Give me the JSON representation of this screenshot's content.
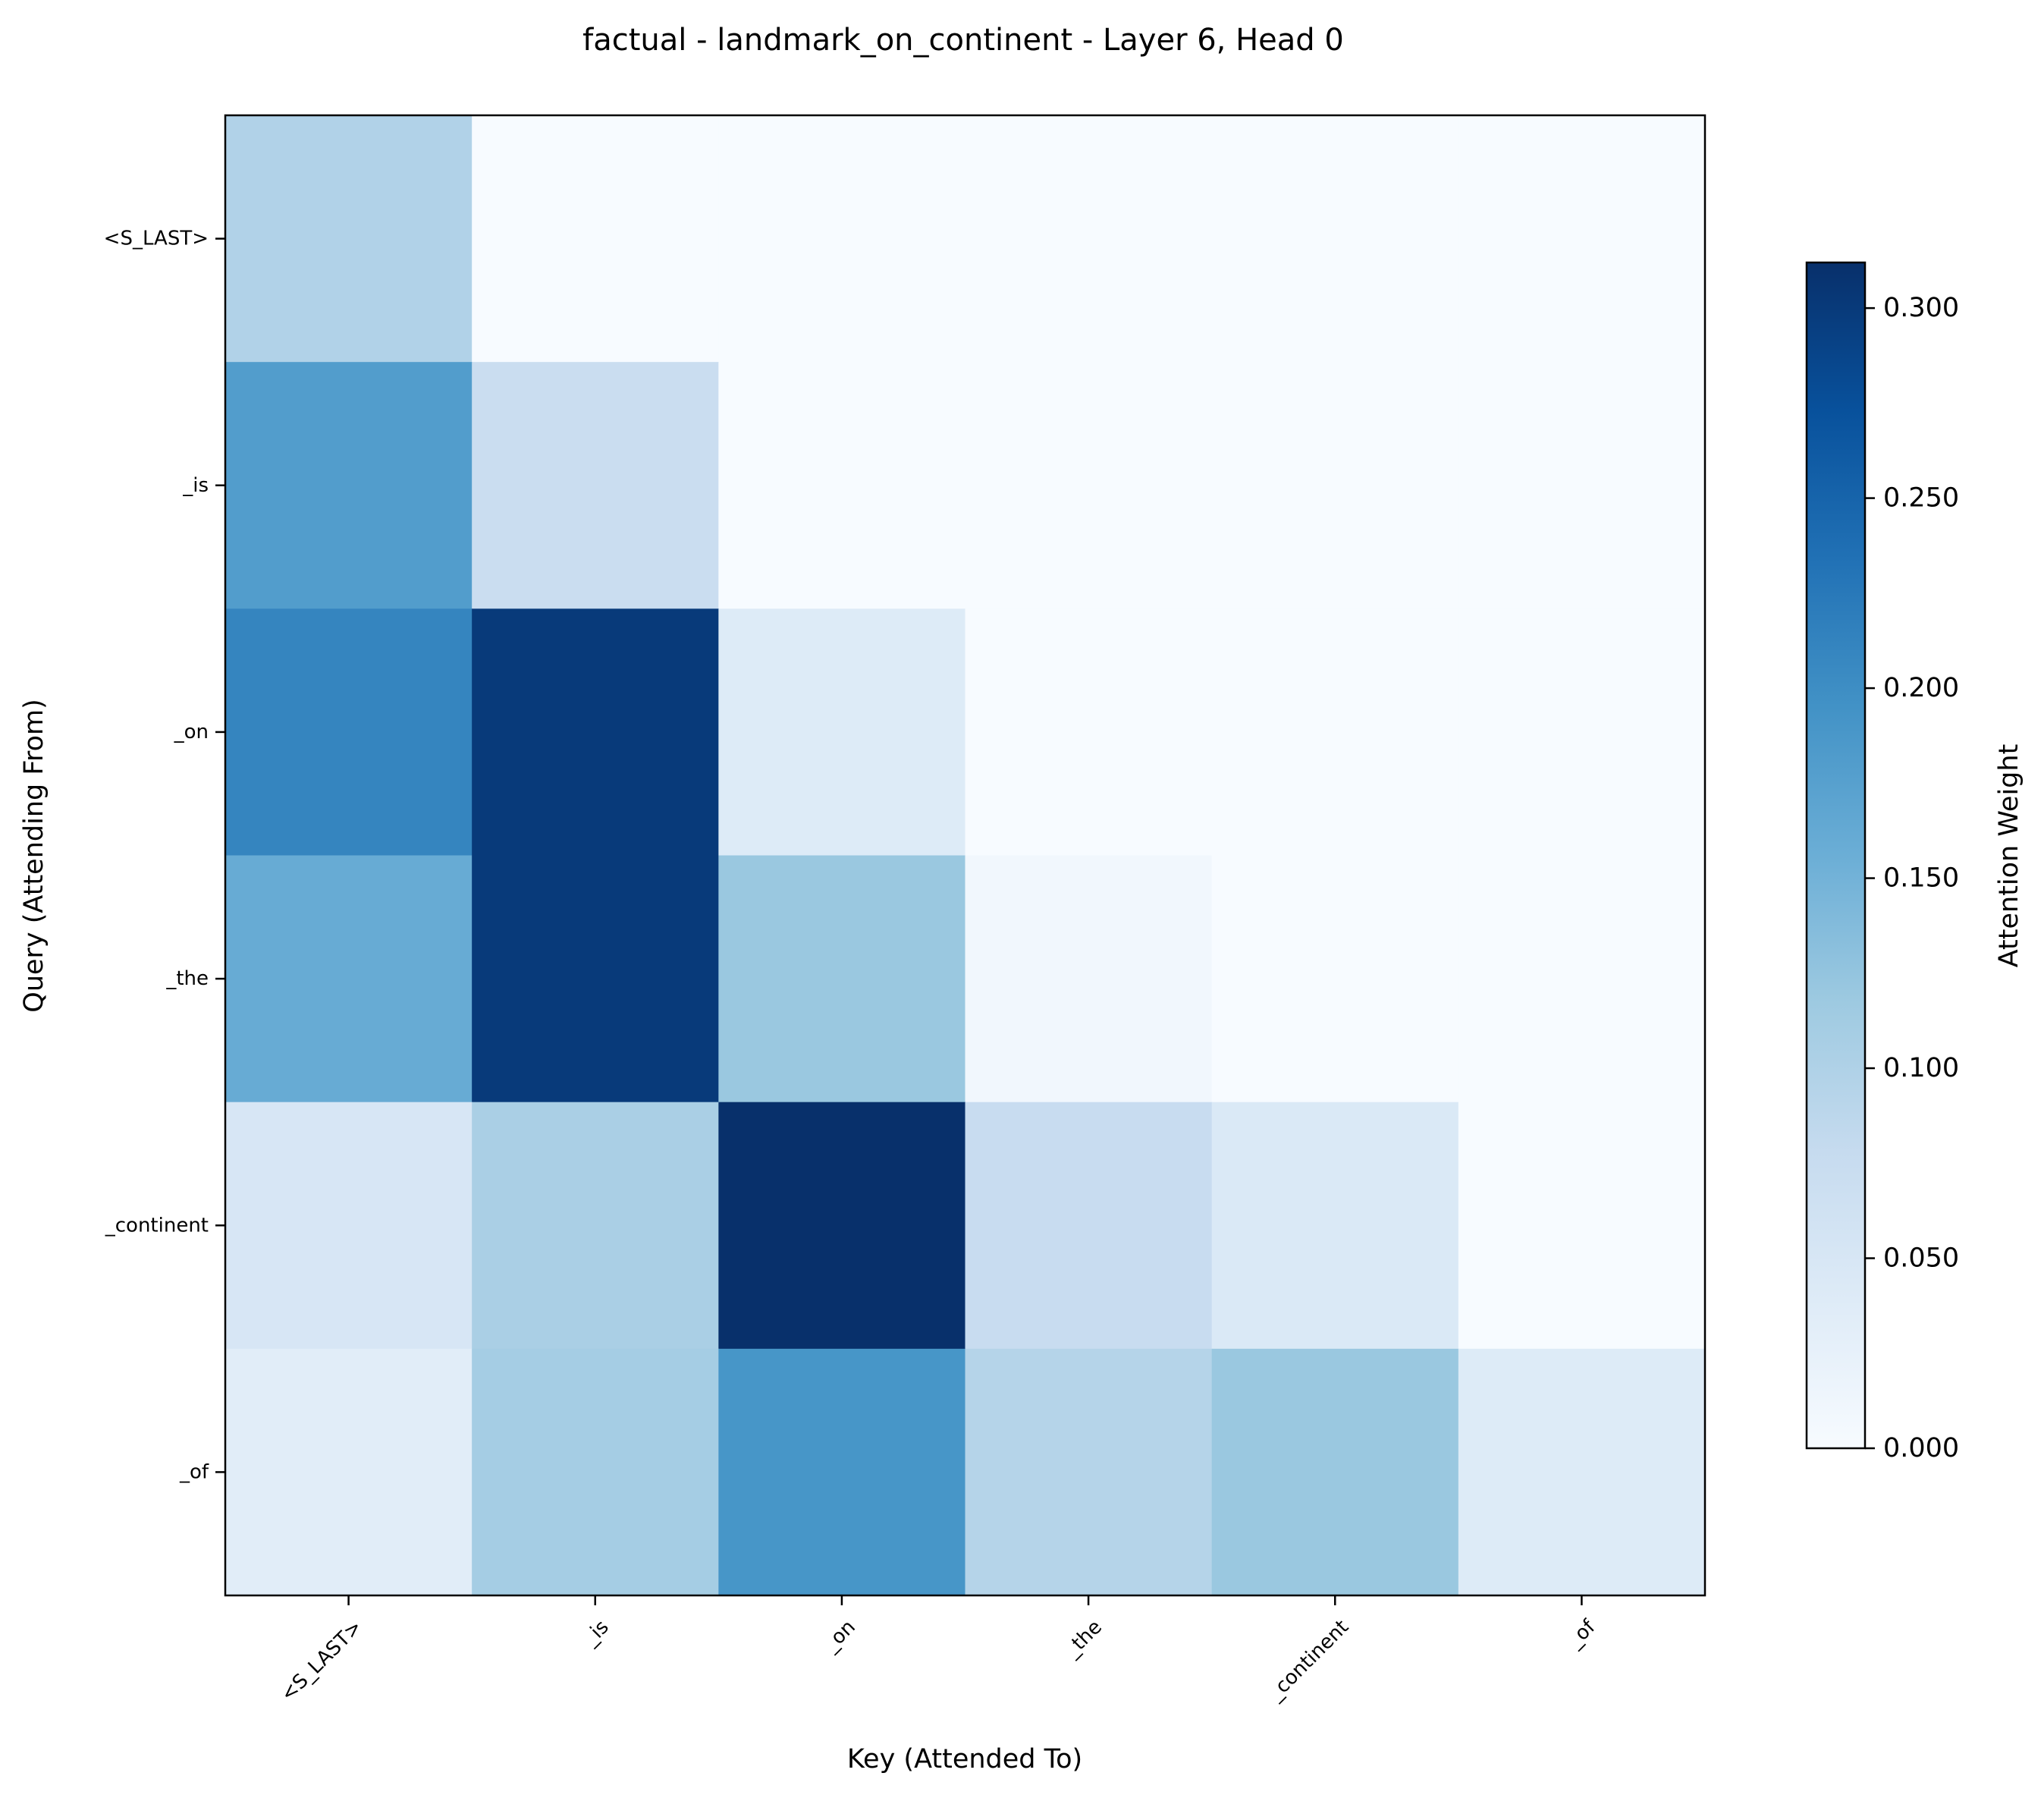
{
  "chart_data": {
    "type": "heatmap",
    "title": "factual - landmark_on_continent - Layer 6, Head 0",
    "xlabel": "Key (Attended To)",
    "ylabel": "Query (Attending From)",
    "x_tokens": [
      "<S_LAST>",
      "_is",
      "_on",
      "_the",
      "_continent",
      "_of"
    ],
    "y_tokens": [
      "<S_LAST>",
      "_is",
      "_on",
      "_the",
      "_continent",
      "_of"
    ],
    "values": [
      [
        0.098,
        0.0,
        0.0,
        0.0,
        0.0,
        0.0
      ],
      [
        0.18,
        0.072,
        0.0,
        0.0,
        0.0,
        0.0
      ],
      [
        0.21,
        0.3,
        0.04,
        0.0,
        0.0,
        0.0
      ],
      [
        0.16,
        0.3,
        0.12,
        0.01,
        0.0,
        0.0
      ],
      [
        0.05,
        0.105,
        0.312,
        0.075,
        0.045,
        0.0
      ],
      [
        0.035,
        0.11,
        0.19,
        0.095,
        0.12,
        0.04
      ]
    ],
    "colormap": "Blues",
    "vmin": 0.0,
    "vmax": 0.312,
    "colorbar": {
      "label": "Attention Weight",
      "ticks": [
        0.0,
        0.05,
        0.1,
        0.15,
        0.2,
        0.25,
        0.3
      ],
      "tick_labels": [
        "0.000",
        "0.050",
        "0.100",
        "0.150",
        "0.200",
        "0.250",
        "0.300"
      ]
    },
    "grid": false
  }
}
